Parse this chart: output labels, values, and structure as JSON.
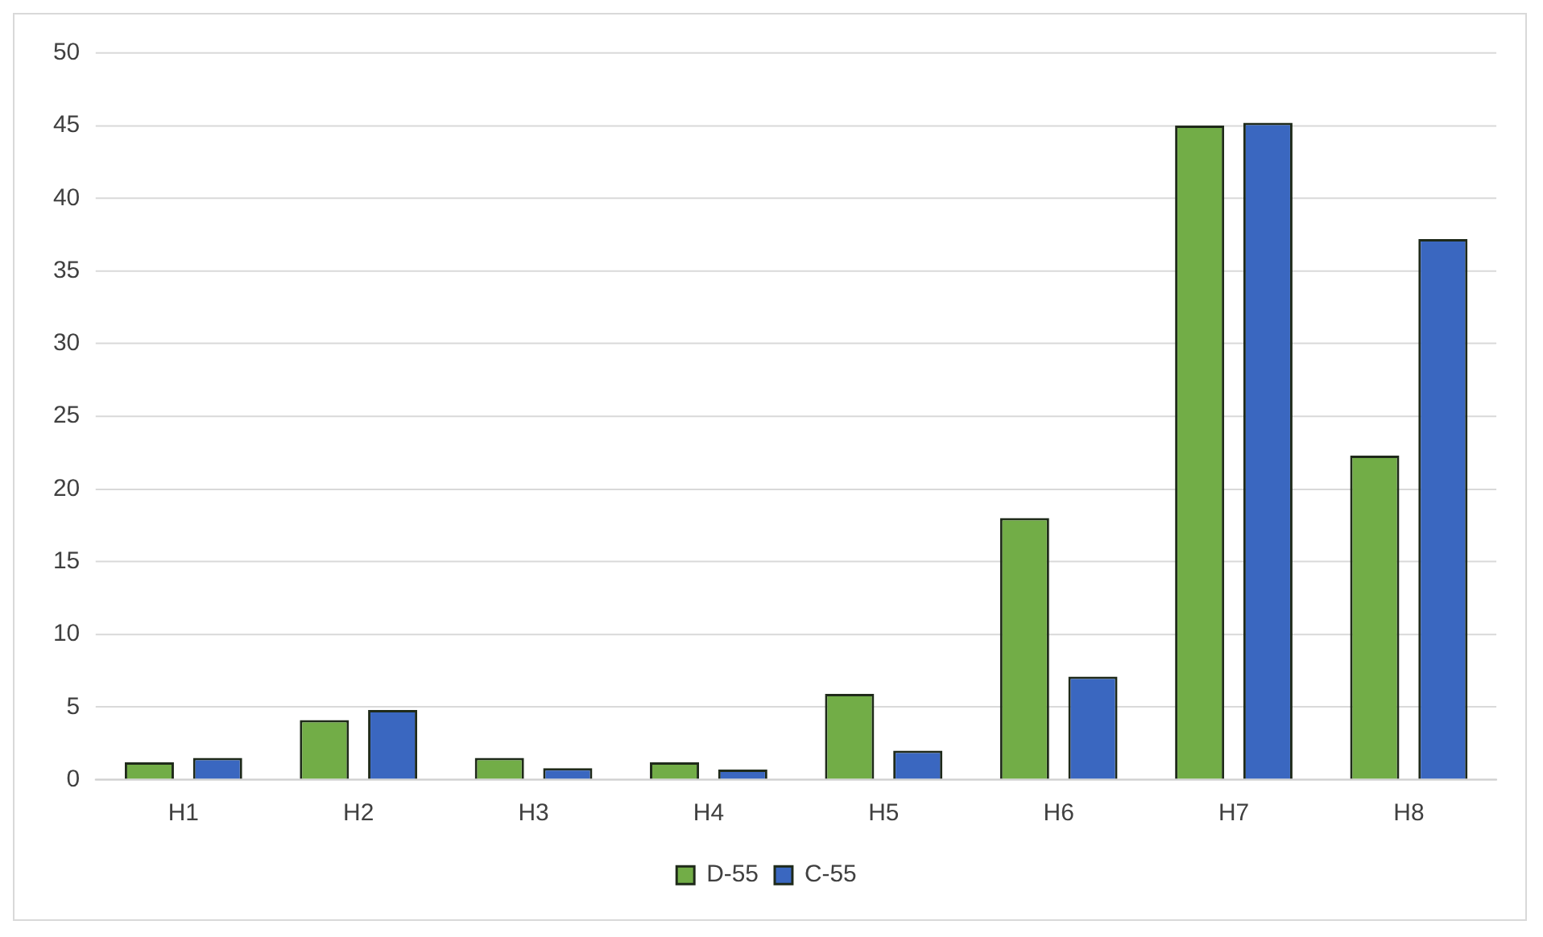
{
  "chart_data": {
    "type": "bar",
    "categories": [
      "H1",
      "H2",
      "H3",
      "H4",
      "H5",
      "H6",
      "H7",
      "H8"
    ],
    "series": [
      {
        "name": "D-55",
        "color": "#72ad47",
        "values": [
          1.2,
          4.1,
          1.5,
          1.2,
          5.9,
          18.0,
          45.0,
          22.3
        ]
      },
      {
        "name": "C-55",
        "color": "#3a67c0",
        "values": [
          1.5,
          4.8,
          0.8,
          0.7,
          2.0,
          7.1,
          45.2,
          37.2
        ]
      }
    ],
    "ylim": [
      0,
      50
    ],
    "yticks": [
      0,
      5,
      10,
      15,
      20,
      25,
      30,
      35,
      40,
      45,
      50
    ],
    "grid": "y",
    "legend": "bottom"
  }
}
